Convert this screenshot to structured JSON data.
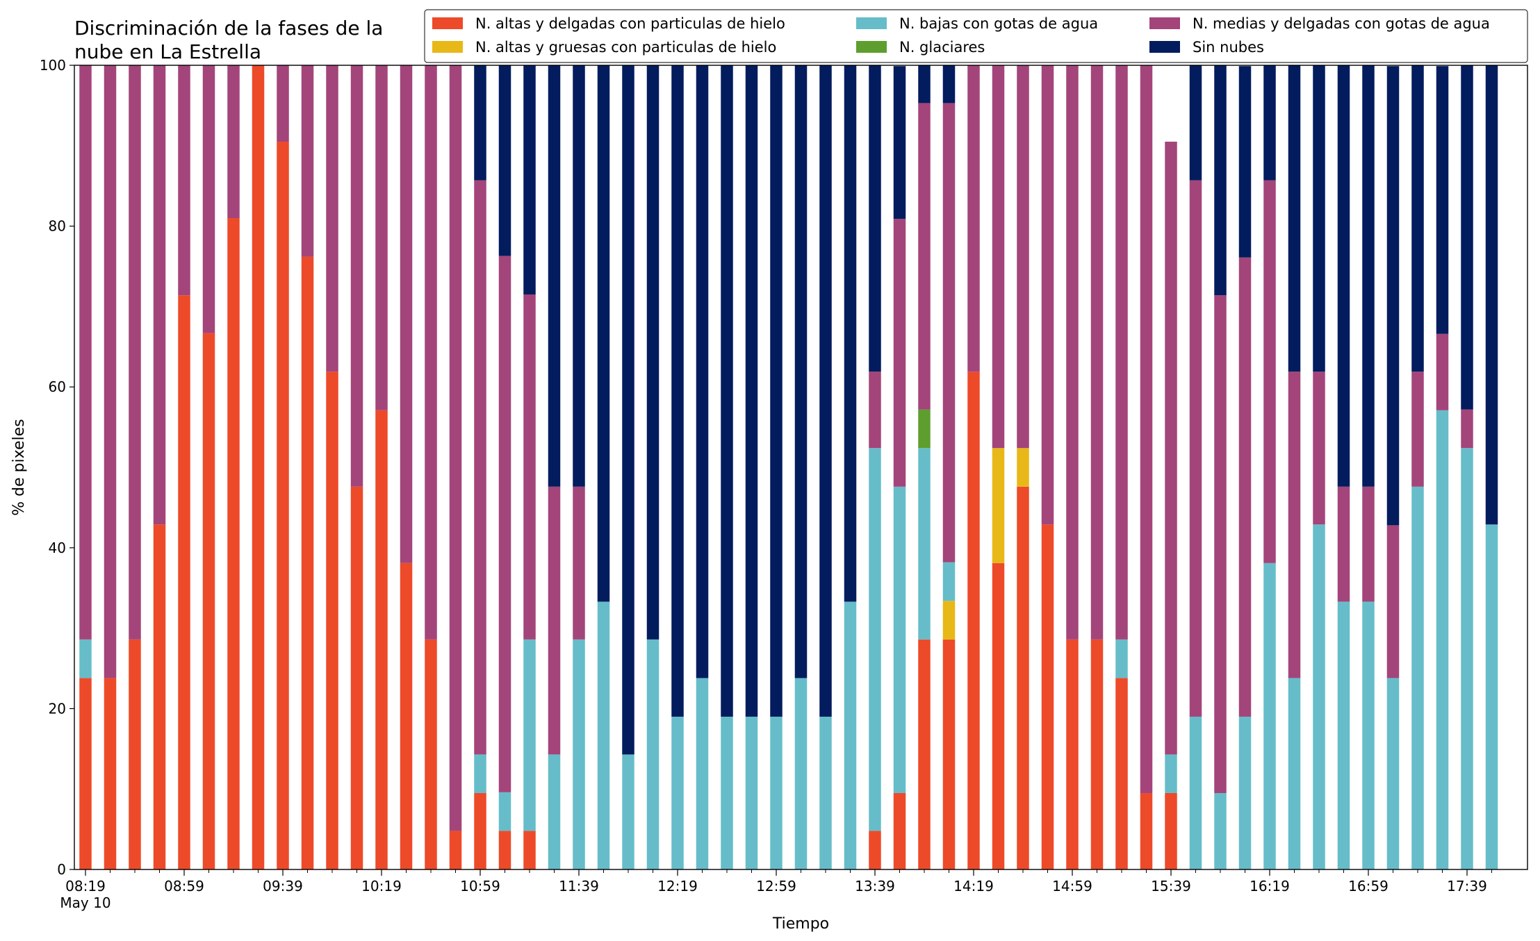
{
  "chart_data": {
    "type": "bar",
    "stacked": true,
    "title": "Discriminación de la fases de la\nnube en La Estrella",
    "xlabel": "Tiempo",
    "ylabel": "% de pixeles",
    "ylim": [
      0,
      100
    ],
    "yticks": [
      0,
      20,
      40,
      60,
      80,
      100
    ],
    "grid": false,
    "legend_position": "top-right",
    "categories": [
      "08:19",
      "08:29",
      "08:39",
      "08:49",
      "08:59",
      "09:09",
      "09:19",
      "09:29",
      "09:39",
      "09:49",
      "09:59",
      "10:09",
      "10:19",
      "10:29",
      "10:39",
      "10:49",
      "10:59",
      "11:09",
      "11:19",
      "11:29",
      "11:39",
      "11:49",
      "11:59",
      "12:09",
      "12:19",
      "12:29",
      "12:39",
      "12:49",
      "12:59",
      "13:09",
      "13:19",
      "13:29",
      "13:39",
      "13:49",
      "13:59",
      "14:09",
      "14:19",
      "14:29",
      "14:39",
      "14:49",
      "14:59",
      "15:09",
      "15:19",
      "15:29",
      "15:39",
      "15:49",
      "15:59",
      "16:09",
      "16:19",
      "16:29",
      "16:39",
      "16:49",
      "16:59",
      "17:09",
      "17:19",
      "17:29",
      "17:39",
      "17:49"
    ],
    "tick_labels": [
      {
        "index": 0,
        "label": "08:19\nMay 10"
      },
      {
        "index": 4,
        "label": "08:59"
      },
      {
        "index": 8,
        "label": "09:39"
      },
      {
        "index": 12,
        "label": "10:19"
      },
      {
        "index": 16,
        "label": "10:59"
      },
      {
        "index": 20,
        "label": "11:39"
      },
      {
        "index": 24,
        "label": "12:19"
      },
      {
        "index": 28,
        "label": "12:59"
      },
      {
        "index": 32,
        "label": "13:39"
      },
      {
        "index": 36,
        "label": "14:19"
      },
      {
        "index": 40,
        "label": "14:59"
      },
      {
        "index": 44,
        "label": "15:39"
      },
      {
        "index": 48,
        "label": "16:19"
      },
      {
        "index": 52,
        "label": "16:59"
      },
      {
        "index": 56,
        "label": "17:39"
      }
    ],
    "series": [
      {
        "name": "N. altas y delgadas con particulas de hielo",
        "color": "#ed4a2a",
        "values": [
          23.8,
          23.8,
          28.6,
          42.9,
          71.4,
          66.7,
          81.0,
          100,
          90.5,
          76.2,
          61.9,
          47.6,
          57.1,
          38.1,
          28.6,
          4.8,
          9.5,
          4.8,
          4.8,
          0,
          0,
          0,
          0,
          0,
          0,
          0,
          0,
          0,
          0,
          0,
          0,
          0,
          4.8,
          9.5,
          28.6,
          28.6,
          61.9,
          38.1,
          47.6,
          42.9,
          28.6,
          28.6,
          23.8,
          9.5,
          9.5,
          0,
          0,
          0,
          0,
          0,
          0,
          0,
          0,
          0,
          0,
          0,
          0,
          0
        ]
      },
      {
        "name": "N. altas y gruesas con particulas de hielo",
        "color": "#e8b818",
        "values": [
          0,
          0,
          0,
          0,
          0,
          0,
          0,
          0,
          0,
          0,
          0,
          0,
          0,
          0,
          0,
          0,
          0,
          0,
          0,
          0,
          0,
          0,
          0,
          0,
          0,
          0,
          0,
          0,
          0,
          0,
          0,
          0,
          0,
          0,
          0,
          4.8,
          0,
          14.3,
          4.8,
          0,
          0,
          0,
          0,
          0,
          0,
          0,
          0,
          0,
          0,
          0,
          0,
          0,
          0,
          0,
          0,
          0,
          0,
          0
        ]
      },
      {
        "name": "N. bajas con gotas de agua",
        "color": "#66bdc9",
        "values": [
          4.8,
          0,
          0,
          0,
          0,
          0,
          0,
          0,
          0,
          0,
          0,
          0,
          0,
          0,
          0,
          0,
          4.8,
          4.8,
          23.8,
          14.3,
          28.6,
          33.3,
          14.3,
          28.6,
          19.0,
          23.8,
          19.0,
          19.0,
          19.0,
          23.8,
          19.0,
          33.3,
          47.6,
          38.1,
          23.8,
          4.8,
          0,
          0,
          0,
          0,
          0,
          0,
          4.8,
          0,
          4.8,
          19.0,
          9.5,
          19.0,
          38.1,
          23.8,
          42.9,
          33.3,
          33.3,
          23.8,
          47.6,
          57.1,
          52.4,
          42.9
        ]
      },
      {
        "name": "N. glaciares",
        "color": "#5e9e2e",
        "values": [
          0,
          0,
          0,
          0,
          0,
          0,
          0,
          0,
          0,
          0,
          0,
          0,
          0,
          0,
          0,
          0,
          0,
          0,
          0,
          0,
          0,
          0,
          0,
          0,
          0,
          0,
          0,
          0,
          0,
          0,
          0,
          0,
          0,
          0,
          4.8,
          0,
          0,
          0,
          0,
          0,
          0,
          0,
          0,
          0,
          0,
          0,
          0,
          0,
          0,
          0,
          0,
          0,
          0,
          0,
          0,
          0,
          0,
          0
        ]
      },
      {
        "name": "N. medias y delgadas con gotas de agua",
        "color": "#a3457a",
        "values": [
          71.4,
          76.2,
          71.4,
          57.1,
          28.6,
          33.3,
          19.0,
          0,
          9.5,
          23.8,
          38.1,
          52.4,
          42.9,
          61.9,
          71.4,
          95.2,
          71.4,
          66.7,
          42.9,
          33.3,
          19.0,
          0,
          0,
          0,
          0,
          0,
          0,
          0,
          0,
          0,
          0,
          0,
          9.5,
          33.3,
          38.1,
          57.1,
          38.1,
          47.6,
          47.6,
          57.1,
          71.4,
          71.4,
          71.4,
          90.5,
          76.2,
          66.7,
          61.9,
          57.1,
          47.6,
          38.1,
          19.0,
          14.3,
          14.3,
          19.0,
          14.3,
          9.5,
          4.8,
          0
        ]
      },
      {
        "name": "Sin nubes",
        "color": "#031c5e",
        "values": [
          0,
          0,
          0,
          0,
          0,
          0,
          0,
          0,
          0,
          0,
          0,
          0,
          0,
          0,
          0,
          0,
          14.3,
          23.8,
          28.6,
          52.4,
          52.4,
          66.7,
          85.7,
          71.4,
          81.0,
          76.2,
          81.0,
          81.0,
          81.0,
          76.2,
          81.0,
          66.7,
          38.1,
          19.0,
          4.8,
          4.8,
          0,
          0,
          0,
          0,
          0,
          0,
          0,
          0,
          0,
          14.3,
          28.6,
          23.8,
          14.3,
          38.1,
          38.1,
          52.4,
          52.4,
          57.1,
          38.1,
          33.3,
          42.9,
          57.1
        ]
      }
    ],
    "legend_order": [
      0,
      1,
      2,
      3,
      4,
      5
    ]
  }
}
